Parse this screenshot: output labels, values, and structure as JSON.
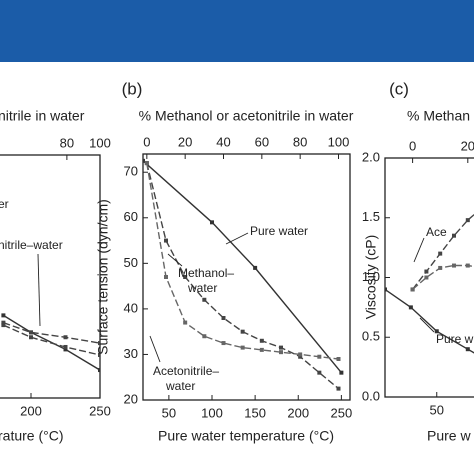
{
  "chart_data": [
    {
      "type": "line",
      "title": "nitrile in water",
      "xlabel": "rature (°C)",
      "xlim": [
        100,
        250
      ],
      "xticks": [
        200,
        250
      ],
      "x2lim": [
        -25,
        100
      ],
      "x2ticks": [
        80,
        100
      ],
      "ylim": [
        0,
        1
      ],
      "series": [
        {
          "color": "#333333",
          "linestyle": "solid",
          "x": [
            180,
            200,
            225,
            250
          ],
          "values": [
            0.34,
            0.27,
            0.2,
            0.115
          ]
        },
        {
          "color": "#444444",
          "linestyle": "dashed",
          "x": [
            180,
            200,
            225,
            250
          ],
          "values": [
            0.31,
            0.27,
            0.25,
            0.226
          ]
        },
        {
          "color": "#444444",
          "linestyle": "dashed",
          "x": [
            180,
            200,
            225,
            250
          ],
          "values": [
            0.3,
            0.25,
            0.21,
            0.177
          ]
        }
      ],
      "annotations": [
        [
          "er"
        ],
        [
          "nitrile–water"
        ]
      ]
    },
    {
      "type": "line",
      "label": "(b)",
      "title": "% Methanol or acetonitrile in water",
      "xlabel": "Pure water temperature (°C)",
      "ylabel": "Surface tension (dyn/cm)",
      "xlim": [
        20,
        260
      ],
      "xticks": [
        50,
        100,
        150,
        200,
        250
      ],
      "x2lim": [
        -2,
        106
      ],
      "x2ticks": [
        0,
        20,
        40,
        60,
        80,
        100
      ],
      "ylim": [
        20,
        74
      ],
      "yticks": [
        20,
        30,
        40,
        50,
        60,
        70
      ],
      "series": [
        {
          "color": "#333333",
          "linestyle": "solid",
          "x": [
            20,
            100,
            150,
            250
          ],
          "values": [
            72.5,
            59,
            49,
            26
          ]
        },
        {
          "color": "#444444",
          "linestyle": "dashed",
          "axis": "x2",
          "x": [
            0,
            10,
            20,
            30,
            40,
            50,
            60,
            70,
            80,
            90,
            100
          ],
          "values": [
            72,
            55,
            47,
            42,
            38,
            35,
            33,
            31.5,
            29.5,
            26,
            22.5
          ]
        },
        {
          "color": "#666666",
          "linestyle": "dashed",
          "axis": "x2",
          "x": [
            0,
            10,
            20,
            30,
            40,
            50,
            60,
            70,
            80,
            90,
            100
          ],
          "values": [
            72,
            47,
            37,
            34,
            32.5,
            31.5,
            31,
            30.5,
            30,
            29.5,
            29
          ]
        }
      ],
      "annotations": [
        [
          "Pure water"
        ],
        [
          "Methanol–",
          "water"
        ],
        [
          "Acetonitrile–",
          "water"
        ]
      ]
    },
    {
      "type": "line",
      "label": "(c)",
      "title": "% Methan",
      "xlabel": "Pure w",
      "ylabel": "Viscosity (cP)",
      "xlim": [
        0,
        200
      ],
      "xticks": [
        50
      ],
      "x2lim": [
        -10,
        65
      ],
      "x2ticks": [
        0,
        20
      ],
      "ylim": [
        0,
        2
      ],
      "yticks": [
        {
          "value": 0,
          "label": "0.0"
        },
        {
          "value": 0.5,
          "label": "0.5"
        },
        {
          "value": 1,
          "label": "1.0"
        },
        {
          "value": 1.5,
          "label": "1.5"
        },
        {
          "value": 2,
          "label": "2.0"
        }
      ],
      "series": [
        {
          "color": "#444444",
          "linestyle": "dashed",
          "axis": "x2",
          "x": [
            0,
            5,
            10,
            15,
            20,
            25,
            30
          ],
          "values": [
            0.9,
            1.05,
            1.2,
            1.35,
            1.48,
            1.58,
            1.62
          ]
        },
        {
          "color": "#666666",
          "linestyle": "dashed",
          "axis": "x2",
          "x": [
            0,
            5,
            10,
            15,
            20,
            25,
            30
          ],
          "values": [
            0.9,
            1.0,
            1.08,
            1.1,
            1.1,
            1.08,
            1.05
          ]
        },
        {
          "color": "#333333",
          "linestyle": "solid",
          "x": [
            0,
            25,
            50,
            80,
            100
          ],
          "values": [
            0.9,
            0.75,
            0.55,
            0.4,
            0.3
          ]
        }
      ],
      "annotations": [
        [
          "Ace"
        ],
        [
          "Pure w"
        ]
      ]
    }
  ]
}
